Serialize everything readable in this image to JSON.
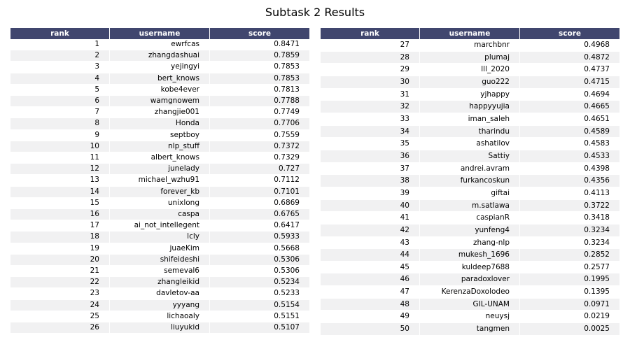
{
  "chart_data": {
    "type": "table",
    "title": "Subtask 2 Results",
    "columns": [
      "rank",
      "username",
      "score"
    ],
    "rows": [
      [
        1,
        "ewrfcas",
        "0.8471"
      ],
      [
        2,
        "zhangdashuai",
        "0.7859"
      ],
      [
        3,
        "yejingyi",
        "0.7853"
      ],
      [
        4,
        "bert_knows",
        "0.7853"
      ],
      [
        5,
        "kobe4ever",
        "0.7813"
      ],
      [
        6,
        "wamgnowem",
        "0.7788"
      ],
      [
        7,
        "zhangjie001",
        "0.7749"
      ],
      [
        8,
        "Honda",
        "0.7706"
      ],
      [
        9,
        "septboy",
        "0.7559"
      ],
      [
        10,
        "nlp_stuff",
        "0.7372"
      ],
      [
        11,
        "albert_knows",
        "0.7329"
      ],
      [
        12,
        "junelady",
        "0.727"
      ],
      [
        13,
        "michael_wzhu91",
        "0.7112"
      ],
      [
        14,
        "forever_kb",
        "0.7101"
      ],
      [
        15,
        "unixlong",
        "0.6869"
      ],
      [
        16,
        "caspa",
        "0.6765"
      ],
      [
        17,
        "ai_not_intellegent",
        "0.6417"
      ],
      [
        18,
        "lcly",
        "0.5933"
      ],
      [
        19,
        "juaeKim",
        "0.5668"
      ],
      [
        20,
        "shifeideshi",
        "0.5306"
      ],
      [
        21,
        "semeval6",
        "0.5306"
      ],
      [
        22,
        "zhangleikid",
        "0.5234"
      ],
      [
        23,
        "davletov-aa",
        "0.5233"
      ],
      [
        24,
        "yyyang",
        "0.5154"
      ],
      [
        25,
        "lichaoaly",
        "0.5151"
      ],
      [
        26,
        "liuyukid",
        "0.5107"
      ],
      [
        27,
        "marchbnr",
        "0.4968"
      ],
      [
        28,
        "plumaj",
        "0.4872"
      ],
      [
        29,
        "lll_2020",
        "0.4737"
      ],
      [
        30,
        "guo222",
        "0.4715"
      ],
      [
        31,
        "yjhappy",
        "0.4694"
      ],
      [
        32,
        "happyyujia",
        "0.4665"
      ],
      [
        33,
        "iman_saleh",
        "0.4651"
      ],
      [
        34,
        "tharindu",
        "0.4589"
      ],
      [
        35,
        "ashatilov",
        "0.4583"
      ],
      [
        36,
        "Sattiy",
        "0.4533"
      ],
      [
        37,
        "andrei.avram",
        "0.4398"
      ],
      [
        38,
        "furkancoskun",
        "0.4356"
      ],
      [
        39,
        "giftai",
        "0.4113"
      ],
      [
        40,
        "m.satlawa",
        "0.3722"
      ],
      [
        41,
        "caspianR",
        "0.3418"
      ],
      [
        42,
        "yunfeng4",
        "0.3234"
      ],
      [
        43,
        "zhang-nlp",
        "0.3234"
      ],
      [
        44,
        "mukesh_1696",
        "0.2852"
      ],
      [
        45,
        "kuldeep7688",
        "0.2577"
      ],
      [
        46,
        "paradoxlover",
        "0.1995"
      ],
      [
        47,
        "KerenzaDoxolodeo",
        "0.1395"
      ],
      [
        48,
        "GIL-UNAM",
        "0.0971"
      ],
      [
        49,
        "neuysj",
        "0.0219"
      ],
      [
        50,
        "tangmen",
        "0.0025"
      ]
    ],
    "header_color": "#40466e",
    "header_text_color": "#ffffff",
    "alt_row_color": "#f1f1f2"
  }
}
